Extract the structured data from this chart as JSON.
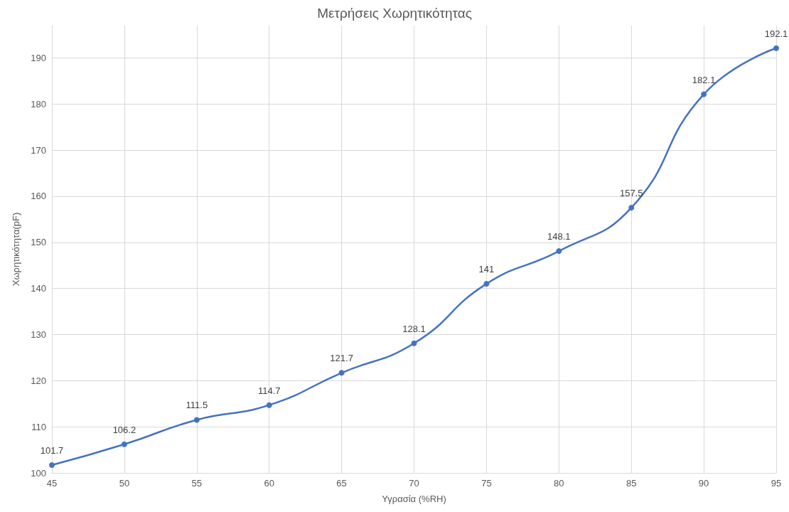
{
  "chart_data": {
    "type": "line",
    "title": "Μετρήσεις Χωρητικότητας",
    "xlabel": "Υγρασία (%RH)",
    "ylabel": "Χωρητικότητα(pF)",
    "x": [
      45,
      50,
      55,
      60,
      65,
      70,
      75,
      80,
      85,
      90,
      95
    ],
    "series": [
      {
        "color": "#4472c4",
        "values": [
          101.7,
          106.2,
          111.5,
          114.7,
          121.7,
          128.1,
          141,
          148.1,
          157.5,
          182.1,
          192.1
        ]
      }
    ],
    "xlim": [
      45,
      95
    ],
    "xticks": [
      45,
      50,
      55,
      60,
      65,
      70,
      75,
      80,
      85,
      90,
      95
    ],
    "ylim": [
      100,
      197
    ],
    "yticks": [
      100,
      110,
      120,
      130,
      140,
      150,
      160,
      170,
      180,
      190
    ],
    "grid": true,
    "marker": "circle",
    "line_style": "solid",
    "data_labels": true
  }
}
